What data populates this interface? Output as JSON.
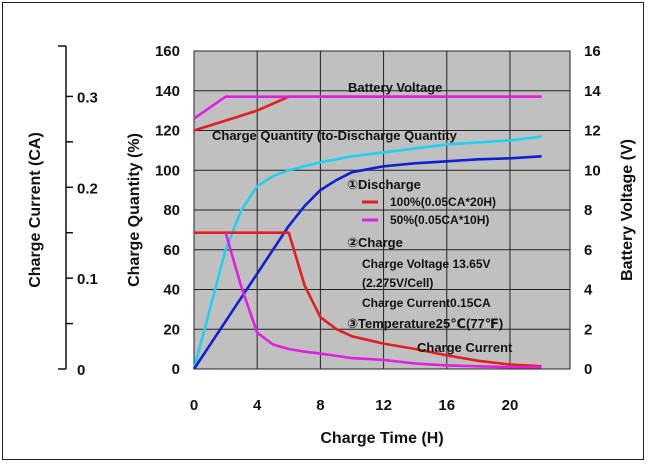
{
  "chart_data": {
    "type": "line",
    "xlabel": "Charge Time (H)",
    "ylabel_left_outer": "Charge Current (CA)",
    "ylabel_left_inner": "Charge Quantity (%)",
    "ylabel_right": "Battery Voltage (V)",
    "x_ticks": [
      "0",
      "4",
      "8",
      "12",
      "16",
      "20"
    ],
    "xlim": [
      0,
      23.8
    ],
    "y_quantity_ticks": [
      "0",
      "20",
      "40",
      "60",
      "80",
      "100",
      "120",
      "140",
      "160"
    ],
    "y_quantity_lim": [
      0,
      160
    ],
    "y_current_ticks": [
      "0",
      "0.1",
      "0.2",
      "0.3"
    ],
    "y_current_lim": [
      0,
      0.35
    ],
    "y_voltage_ticks": [
      "0",
      "2",
      "4",
      "6",
      "8",
      "10",
      "12",
      "14",
      "16"
    ],
    "y_voltage_lim": [
      0,
      16
    ],
    "grid": true,
    "background": "#c0c0c0",
    "series": [
      {
        "key": "voltage_100",
        "axis": "quantity",
        "color": "#e02020",
        "x": [
          0,
          2,
          4,
          6,
          22
        ],
        "y": [
          120,
          125,
          130,
          137,
          137
        ]
      },
      {
        "key": "voltage_50",
        "axis": "quantity",
        "color": "#e020e0",
        "x": [
          0,
          2,
          6,
          22
        ],
        "y": [
          126,
          137,
          137,
          137
        ]
      },
      {
        "key": "quantity_50",
        "axis": "quantity",
        "color": "#20d0f0",
        "x": [
          0,
          1,
          2,
          3,
          4,
          5,
          6,
          8,
          10,
          12,
          14,
          16,
          18,
          20,
          22
        ],
        "y": [
          0,
          30,
          60,
          80,
          92,
          97,
          100,
          104,
          107,
          109,
          111,
          113,
          114,
          115,
          117
        ]
      },
      {
        "key": "quantity_100",
        "axis": "quantity",
        "color": "#1020d0",
        "x": [
          0,
          2,
          4,
          6,
          7,
          8,
          9,
          10,
          12,
          14,
          16,
          18,
          20,
          22
        ],
        "y": [
          0,
          24,
          48,
          72,
          82,
          90,
          95,
          99,
          102,
          103.5,
          104.5,
          105.5,
          106,
          107
        ]
      },
      {
        "key": "current_100",
        "axis": "current",
        "color": "#e02020",
        "x": [
          0,
          6,
          7,
          8,
          9,
          10,
          12,
          14,
          16,
          18,
          20,
          22
        ],
        "y": [
          0.15,
          0.15,
          0.092,
          0.057,
          0.044,
          0.036,
          0.028,
          0.022,
          0.015,
          0.009,
          0.005,
          0.003
        ]
      },
      {
        "key": "current_50",
        "axis": "current",
        "color": "#e020e0",
        "x": [
          2,
          3,
          4,
          5,
          6,
          7,
          8,
          10,
          12,
          14,
          16,
          18,
          20,
          22
        ],
        "y": [
          0.15,
          0.09,
          0.04,
          0.027,
          0.022,
          0.019,
          0.017,
          0.012,
          0.01,
          0.006,
          0.004,
          0.003,
          0.002,
          0.002
        ]
      }
    ],
    "annotations": {
      "battery_voltage": "Battery Voltage",
      "charge_quantity": "Charge Quantity (to-Discharge Quantity",
      "charge_current": "Charge Current",
      "discharge_title": "①Discharge",
      "legend_100": "100%(0.05CA*20H)",
      "legend_50": "50%(0.05CA*10H)",
      "charge_title": "②Charge",
      "charge_voltage": "Charge Voltage 13.65V",
      "per_cell": "(2.275V/Cell)",
      "charge_current_value": "Charge Current0.15CA",
      "temperature": "③Temperature25℃(77℉)"
    },
    "legend": [
      {
        "color": "#e02020",
        "label_key": "legend_100"
      },
      {
        "color": "#e020e0",
        "label_key": "legend_50"
      }
    ]
  }
}
